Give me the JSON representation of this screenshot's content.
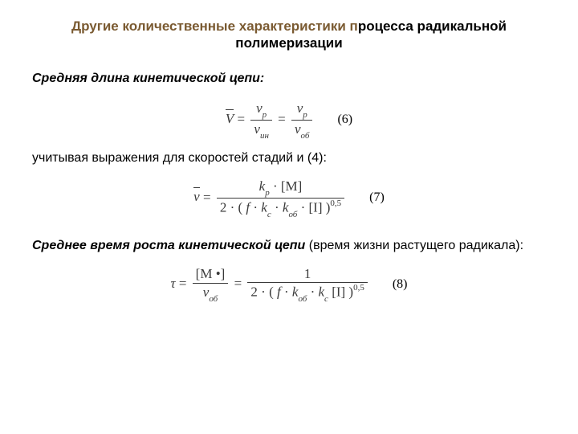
{
  "title": {
    "accent": "Другие количественные характеристики п",
    "rest": "роцесса радикальной полимеризации",
    "color_accent": "#7a5a31",
    "color_rest": "#000000",
    "fontsize": 17,
    "fontweight": "bold"
  },
  "section1": {
    "heading": "Средняя длина кинетической цепи:",
    "eq_label": "(6)",
    "eq": {
      "lhs_symbol": "V",
      "frac1_num": "ν",
      "frac1_num_sub": "p",
      "frac1_den": "ν",
      "frac1_den_sub": "ин",
      "frac2_num": "ν",
      "frac2_num_sub": "p",
      "frac2_den": "ν",
      "frac2_den_sub": "об"
    }
  },
  "line2": {
    "text": "учитывая выражения для скоростей стадий и (4):"
  },
  "eq7": {
    "label": "(7)",
    "lhs_symbol": "v",
    "num_k": "k",
    "num_k_sub": "p",
    "num_M": "[M]",
    "den_prefix": "2 · (",
    "den_f": "f",
    "den_k1": "k",
    "den_k1_sub": "c",
    "den_k2": "k",
    "den_k2_sub": "об",
    "den_I": "[I]",
    "den_suffix": ")",
    "den_exp": "0,5"
  },
  "section2": {
    "bold_italic": "Среднее время роста кинетической цепи",
    "plain": " (время жизни растущего радикала):"
  },
  "eq8": {
    "label": "(8)",
    "lhs": "τ",
    "frac1_num": "[M •]",
    "frac1_den": "ν",
    "frac1_den_sub": "об",
    "frac2_num": "1",
    "den_prefix": "2 · (",
    "den_f": "f",
    "den_k1": "k",
    "den_k1_sub": "об",
    "den_k2": "k",
    "den_k2_sub": "c",
    "den_I": "[I]",
    "den_suffix": ")",
    "den_exp": "0,5"
  },
  "styling": {
    "page_bg": "#ffffff",
    "text_color": "#000000",
    "equation_color": "#3a3a3a",
    "body_font": "Arial",
    "equation_font": "Times New Roman",
    "body_fontsize": 16,
    "equation_fontsize": 17,
    "sub_fontsize": 11
  }
}
